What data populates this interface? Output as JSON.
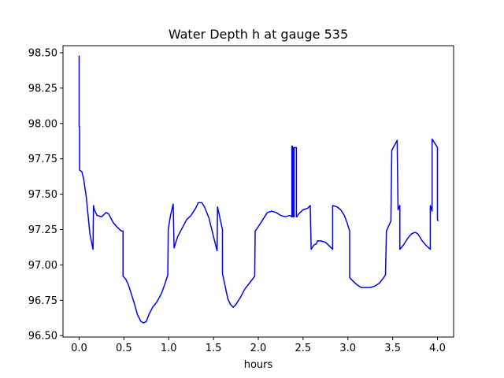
{
  "chart_data": {
    "type": "line",
    "title": "Water Depth h at gauge 535",
    "xlabel": "hours",
    "ylabel": "",
    "xlim": [
      -0.18,
      4.18
    ],
    "ylim": [
      96.49,
      98.55
    ],
    "xticks": [
      0.0,
      0.5,
      1.0,
      1.5,
      2.0,
      2.5,
      3.0,
      3.5,
      4.0
    ],
    "xtick_labels": [
      "0.0",
      "0.5",
      "1.0",
      "1.5",
      "2.0",
      "2.5",
      "3.0",
      "3.5",
      "4.0"
    ],
    "yticks": [
      96.5,
      96.75,
      97.0,
      97.25,
      97.5,
      97.75,
      98.0,
      98.25,
      98.5
    ],
    "ytick_labels": [
      "96.50",
      "96.75",
      "97.00",
      "97.25",
      "97.50",
      "97.75",
      "98.00",
      "98.25",
      "98.50"
    ],
    "grid": false,
    "series": [
      {
        "color": "#0000ff",
        "x": [
          0.0,
          0.0,
          0.005,
          0.005,
          0.03,
          0.05,
          0.08,
          0.12,
          0.155,
          0.16,
          0.17,
          0.2,
          0.25,
          0.3,
          0.33,
          0.38,
          0.42,
          0.47,
          0.49,
          0.49,
          0.52,
          0.55,
          0.58,
          0.62,
          0.65,
          0.69,
          0.72,
          0.75,
          0.78,
          0.82,
          0.87,
          0.92,
          0.96,
          0.99,
          0.995,
          1.02,
          1.05,
          1.06,
          1.1,
          1.15,
          1.2,
          1.25,
          1.3,
          1.33,
          1.37,
          1.4,
          1.45,
          1.5,
          1.54,
          1.545,
          1.6,
          1.6,
          1.63,
          1.66,
          1.69,
          1.72,
          1.75,
          1.8,
          1.85,
          1.9,
          1.96,
          1.965,
          2.0,
          2.05,
          2.1,
          2.15,
          2.2,
          2.25,
          2.3,
          2.35,
          2.375,
          2.375,
          2.38,
          2.38,
          2.385,
          2.385,
          2.395,
          2.395,
          2.4,
          2.4,
          2.425,
          2.425,
          2.43,
          2.45,
          2.5,
          2.55,
          2.58,
          2.59,
          2.62,
          2.65,
          2.66,
          2.7,
          2.75,
          2.8,
          2.83,
          2.83,
          2.88,
          2.92,
          2.96,
          2.99,
          3.02,
          3.02,
          3.05,
          3.1,
          3.15,
          3.2,
          3.25,
          3.3,
          3.35,
          3.4,
          3.42,
          3.43,
          3.48,
          3.49,
          3.55,
          3.56,
          3.58,
          3.58,
          3.62,
          3.67,
          3.71,
          3.75,
          3.78,
          3.8,
          3.83,
          3.87,
          3.92,
          3.92,
          3.94,
          3.94,
          4.0,
          4.0,
          4.01
        ],
        "y": [
          98.48,
          97.98,
          97.98,
          97.67,
          97.66,
          97.61,
          97.48,
          97.22,
          97.11,
          97.42,
          97.39,
          97.35,
          97.34,
          97.37,
          97.36,
          97.3,
          97.27,
          97.24,
          97.24,
          96.92,
          96.9,
          96.86,
          96.8,
          96.72,
          96.65,
          96.6,
          96.59,
          96.6,
          96.65,
          96.7,
          96.74,
          96.8,
          96.87,
          96.93,
          97.25,
          97.35,
          97.43,
          97.12,
          97.2,
          97.26,
          97.32,
          97.35,
          97.4,
          97.44,
          97.44,
          97.41,
          97.33,
          97.2,
          97.1,
          97.41,
          97.25,
          96.94,
          96.85,
          96.76,
          96.72,
          96.7,
          96.72,
          96.77,
          96.83,
          96.87,
          96.92,
          97.24,
          97.27,
          97.32,
          97.37,
          97.38,
          97.37,
          97.35,
          97.34,
          97.35,
          97.34,
          97.84,
          97.84,
          97.34,
          97.34,
          97.83,
          97.83,
          97.34,
          97.34,
          97.83,
          97.83,
          97.34,
          97.34,
          97.36,
          97.39,
          97.4,
          97.42,
          97.11,
          97.14,
          97.15,
          97.17,
          97.17,
          97.16,
          97.13,
          97.11,
          97.42,
          97.41,
          97.39,
          97.35,
          97.3,
          97.24,
          96.91,
          96.89,
          96.86,
          96.84,
          96.84,
          96.84,
          96.85,
          96.87,
          96.91,
          96.93,
          97.24,
          97.31,
          97.81,
          97.88,
          97.39,
          97.42,
          97.11,
          97.14,
          97.19,
          97.22,
          97.23,
          97.22,
          97.2,
          97.17,
          97.14,
          97.11,
          97.42,
          97.38,
          97.89,
          97.83,
          97.32,
          97.31
        ]
      }
    ]
  }
}
